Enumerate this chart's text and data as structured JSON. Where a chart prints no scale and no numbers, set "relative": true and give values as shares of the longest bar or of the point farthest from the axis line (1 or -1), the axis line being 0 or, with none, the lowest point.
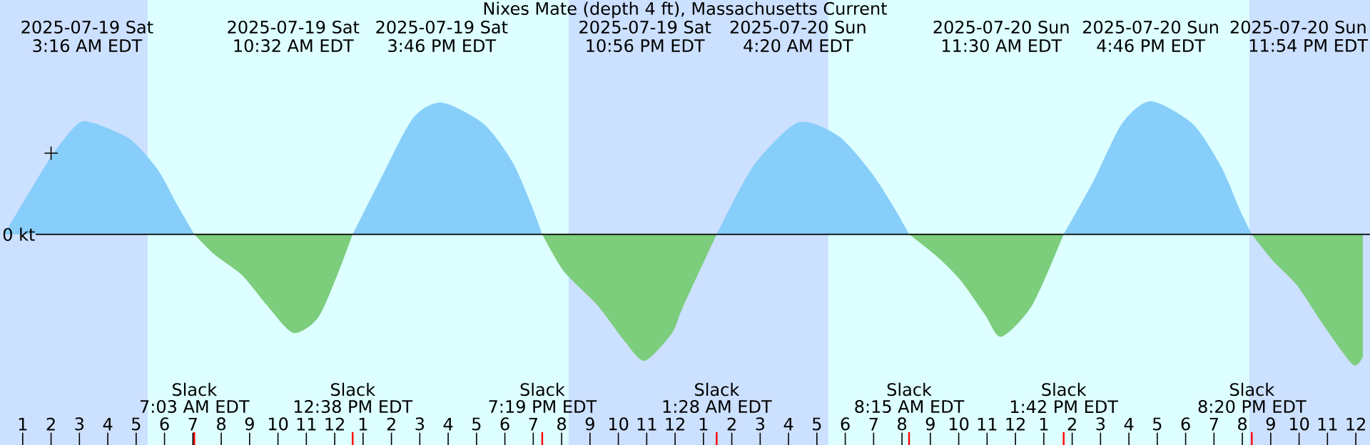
{
  "chart_data": {
    "type": "area",
    "title": "Nixes Mate (depth 4 ft), Massachusetts Current",
    "relative": true,
    "xlim": [
      "2025-07-19T00:12",
      "2025-07-21T00:30"
    ],
    "xticks": [
      {
        "value": "2025-07-19T01:00",
        "label": "1"
      },
      {
        "value": "2025-07-19T02:00",
        "label": "2"
      },
      {
        "value": "2025-07-19T03:00",
        "label": "3"
      },
      {
        "value": "2025-07-19T04:00",
        "label": "4"
      },
      {
        "value": "2025-07-19T05:00",
        "label": "5"
      },
      {
        "value": "2025-07-19T06:00",
        "label": "6"
      },
      {
        "value": "2025-07-19T07:00",
        "label": "7"
      },
      {
        "value": "2025-07-19T08:00",
        "label": "8"
      },
      {
        "value": "2025-07-19T09:00",
        "label": "9"
      },
      {
        "value": "2025-07-19T10:00",
        "label": "10"
      },
      {
        "value": "2025-07-19T11:00",
        "label": "11"
      },
      {
        "value": "2025-07-19T12:00",
        "label": "12"
      },
      {
        "value": "2025-07-19T13:00",
        "label": "1"
      },
      {
        "value": "2025-07-19T14:00",
        "label": "2"
      },
      {
        "value": "2025-07-19T15:00",
        "label": "3"
      },
      {
        "value": "2025-07-19T16:00",
        "label": "4"
      },
      {
        "value": "2025-07-19T17:00",
        "label": "5"
      },
      {
        "value": "2025-07-19T18:00",
        "label": "6"
      },
      {
        "value": "2025-07-19T19:00",
        "label": "7"
      },
      {
        "value": "2025-07-19T20:00",
        "label": "8"
      },
      {
        "value": "2025-07-19T21:00",
        "label": "9"
      },
      {
        "value": "2025-07-19T22:00",
        "label": "10"
      },
      {
        "value": "2025-07-19T23:00",
        "label": "11"
      },
      {
        "value": "2025-07-20T00:00",
        "label": "12"
      },
      {
        "value": "2025-07-20T01:00",
        "label": "1"
      },
      {
        "value": "2025-07-20T02:00",
        "label": "2"
      },
      {
        "value": "2025-07-20T03:00",
        "label": "3"
      },
      {
        "value": "2025-07-20T04:00",
        "label": "4"
      },
      {
        "value": "2025-07-20T05:00",
        "label": "5"
      },
      {
        "value": "2025-07-20T06:00",
        "label": "6"
      },
      {
        "value": "2025-07-20T07:00",
        "label": "7"
      },
      {
        "value": "2025-07-20T08:00",
        "label": "8"
      },
      {
        "value": "2025-07-20T09:00",
        "label": "9"
      },
      {
        "value": "2025-07-20T10:00",
        "label": "10"
      },
      {
        "value": "2025-07-20T11:00",
        "label": "11"
      },
      {
        "value": "2025-07-20T12:00",
        "label": "12"
      },
      {
        "value": "2025-07-20T13:00",
        "label": "1"
      },
      {
        "value": "2025-07-20T14:00",
        "label": "2"
      },
      {
        "value": "2025-07-20T15:00",
        "label": "3"
      },
      {
        "value": "2025-07-20T16:00",
        "label": "4"
      },
      {
        "value": "2025-07-20T17:00",
        "label": "5"
      },
      {
        "value": "2025-07-20T18:00",
        "label": "6"
      },
      {
        "value": "2025-07-20T19:00",
        "label": "7"
      },
      {
        "value": "2025-07-20T20:00",
        "label": "8"
      },
      {
        "value": "2025-07-20T21:00",
        "label": "9"
      },
      {
        "value": "2025-07-20T22:00",
        "label": "10"
      },
      {
        "value": "2025-07-20T23:00",
        "label": "11"
      },
      {
        "value": "2025-07-21T00:00",
        "label": "12"
      }
    ],
    "x": [
      "2025-07-19T00:21",
      "2025-07-19T01:54",
      "2025-07-19T02:45",
      "2025-07-19T03:16",
      "2025-07-19T04:45",
      "2025-07-19T05:45",
      "2025-07-19T06:24",
      "2025-07-19T07:03",
      "2025-07-19T07:45",
      "2025-07-19T08:45",
      "2025-07-19T09:36",
      "2025-07-19T10:32",
      "2025-07-19T11:24",
      "2025-07-19T12:05",
      "2025-07-19T12:38",
      "2025-07-19T13:35",
      "2025-07-19T14:45",
      "2025-07-19T15:46",
      "2025-07-19T17:15",
      "2025-07-19T18:15",
      "2025-07-19T18:55",
      "2025-07-19T19:19",
      "2025-07-19T20:05",
      "2025-07-19T21:15",
      "2025-07-19T22:15",
      "2025-07-19T22:56",
      "2025-07-19T23:54",
      "2025-07-20T00:15",
      "2025-07-20T01:28",
      "2025-07-20T02:45",
      "2025-07-20T04:20",
      "2025-07-20T05:45",
      "2025-07-20T06:54",
      "2025-07-20T07:45",
      "2025-07-20T08:15",
      "2025-07-20T09:15",
      "2025-07-20T10:05",
      "2025-07-20T10:55",
      "2025-07-20T11:30",
      "2025-07-20T12:36",
      "2025-07-20T13:42",
      "2025-07-20T14:45",
      "2025-07-20T15:45",
      "2025-07-20T16:46",
      "2025-07-20T18:15",
      "2025-07-20T19:15",
      "2025-07-20T19:54",
      "2025-07-20T20:20",
      "2025-07-20T21:05",
      "2025-07-20T21:55",
      "2025-07-20T22:55",
      "2025-07-20T23:54",
      "2025-07-21T00:15"
    ],
    "series": [
      {
        "color": "#87cefa",
        "values": [
          0,
          0.55,
          0.79,
          0.85,
          0.72,
          0.49,
          0.24,
          0,
          null,
          null,
          null,
          null,
          null,
          null,
          0,
          0.4,
          0.87,
          0.99,
          0.83,
          0.55,
          0.23,
          0,
          null,
          null,
          null,
          null,
          null,
          null,
          0,
          0.51,
          0.84,
          0.74,
          0.47,
          0.19,
          0,
          null,
          null,
          null,
          null,
          null,
          0,
          0.4,
          0.83,
          1,
          0.83,
          0.51,
          0.19,
          0,
          null,
          null,
          null,
          null,
          null
        ]
      },
      {
        "color": "#7ccd7c",
        "values": [
          null,
          null,
          null,
          null,
          null,
          null,
          null,
          0,
          -0.15,
          -0.31,
          -0.53,
          -0.74,
          -0.63,
          -0.31,
          0,
          null,
          null,
          null,
          null,
          null,
          null,
          0,
          -0.28,
          -0.53,
          -0.81,
          -0.95,
          -0.74,
          -0.56,
          0,
          null,
          null,
          null,
          null,
          null,
          0,
          -0.17,
          -0.35,
          -0.6,
          -0.77,
          -0.53,
          0,
          null,
          null,
          null,
          null,
          null,
          null,
          0,
          -0.2,
          -0.38,
          -0.7,
          -0.98,
          -0.92
        ]
      },
      {
        "type": "scatter",
        "marker": "cross",
        "color": "#000000",
        "x": [
          "2025-07-19T02:00"
        ],
        "values": [
          0.61
        ]
      }
    ],
    "bands": [
      {
        "axis": "x",
        "from": "2025-07-19T00:12",
        "to": "2025-07-19T05:24",
        "color": "#cce0ff"
      },
      {
        "axis": "x",
        "from": "2025-07-19T20:15",
        "to": "2025-07-20T05:24",
        "color": "#cce0ff"
      },
      {
        "axis": "x",
        "from": "2025-07-20T20:15",
        "to": "2025-07-21T00:30",
        "color": "#cce0ff"
      }
    ],
    "annotations": [
      {
        "text": "0 kt",
        "y": 0
      },
      "2025-07-19 Sat",
      "3:16 AM EDT",
      "2025-07-19 Sat",
      "10:32 AM EDT",
      "2025-07-19 Sat",
      "3:46 PM EDT",
      "2025-07-19 Sat",
      "10:56 PM EDT",
      "2025-07-20 Sun",
      "4:20 AM EDT",
      "2025-07-20 Sun",
      "11:30 AM EDT",
      "2025-07-20 Sun",
      "4:46 PM EDT",
      "2025-07-20 Sun",
      "11:54 PM EDT",
      "Slack",
      "7:03 AM EDT",
      "Slack",
      "12:38 PM EDT",
      "Slack",
      "7:19 PM EDT",
      "Slack",
      "1:28 AM EDT",
      "Slack",
      "8:15 AM EDT",
      "Slack",
      "1:42 PM EDT",
      "Slack",
      "8:20 PM EDT"
    ]
  }
}
